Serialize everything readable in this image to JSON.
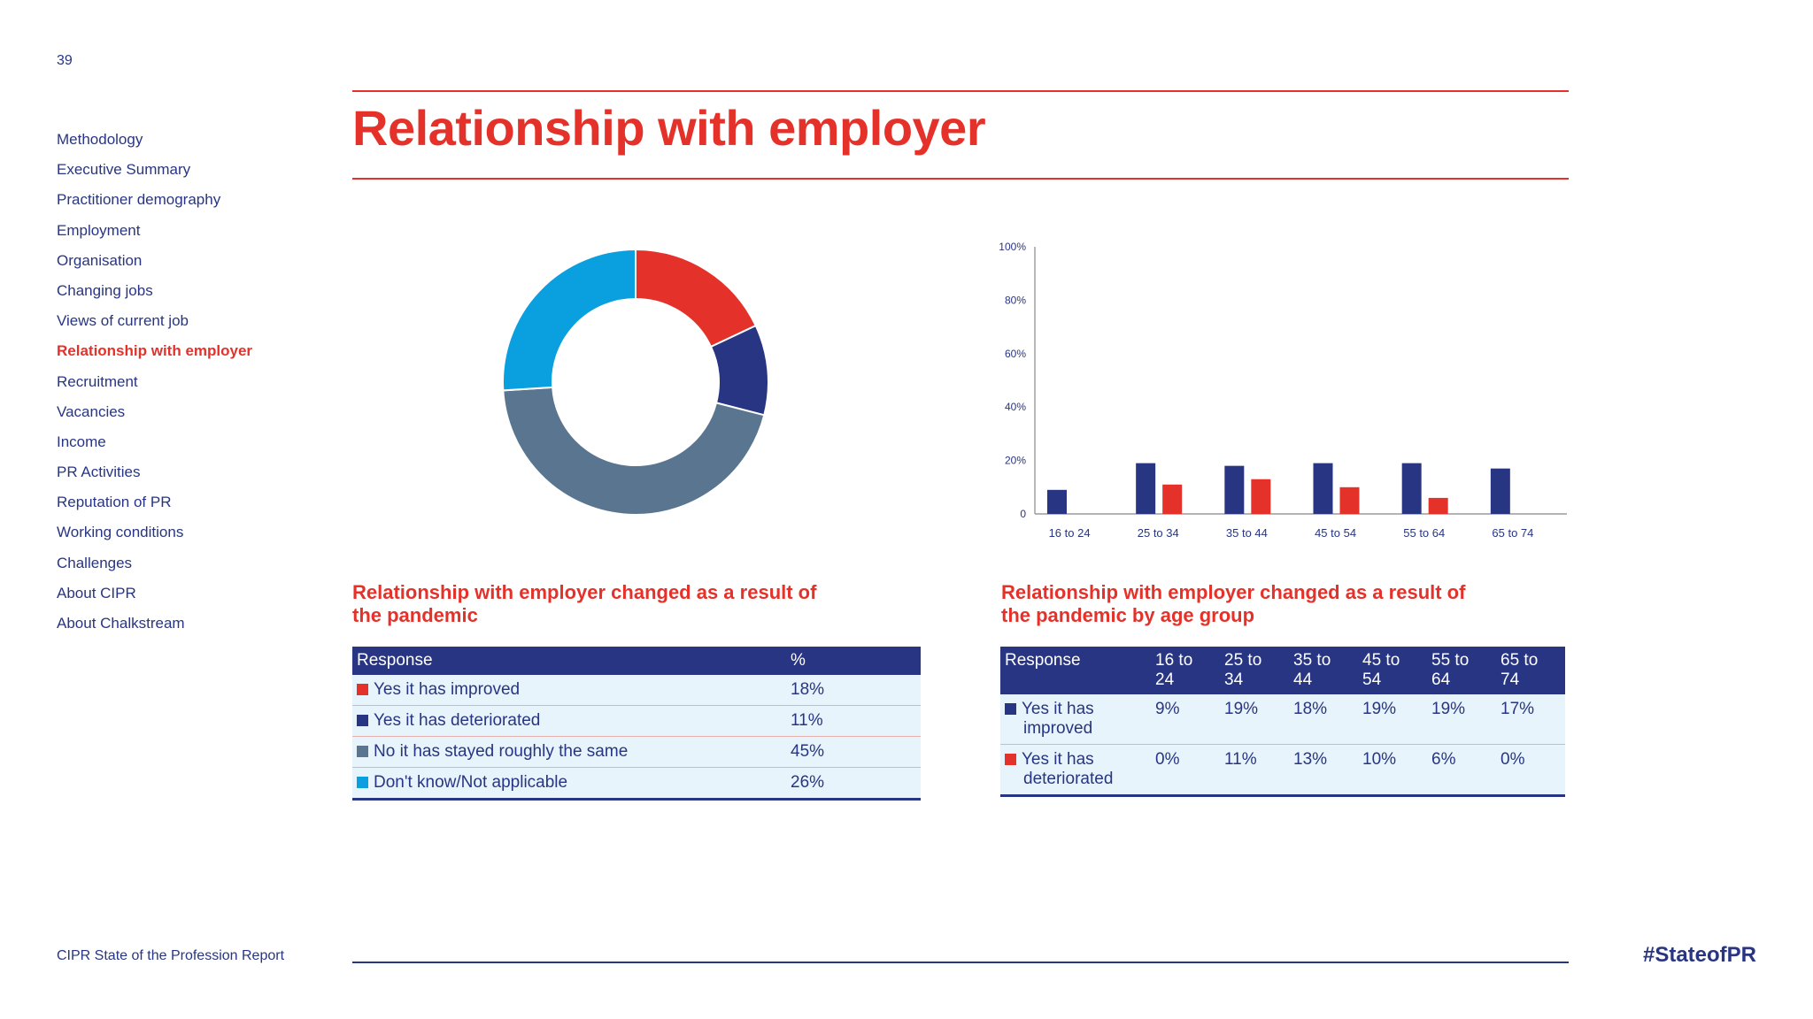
{
  "page_number": "39",
  "sidebar": {
    "items": [
      {
        "label": "Methodology"
      },
      {
        "label": "Executive Summary"
      },
      {
        "label": "Practitioner demography"
      },
      {
        "label": "Employment"
      },
      {
        "label": "Organisation"
      },
      {
        "label": "Changing jobs"
      },
      {
        "label": "Views of current job"
      },
      {
        "label": "Relationship with employer",
        "active": true
      },
      {
        "label": "Recruitment"
      },
      {
        "label": "Vacancies"
      },
      {
        "label": "Income"
      },
      {
        "label": "PR Activities"
      },
      {
        "label": "Reputation of PR"
      },
      {
        "label": "Working conditions"
      },
      {
        "label": "Challenges"
      },
      {
        "label": "About CIPR"
      },
      {
        "label": "About Chalkstream"
      }
    ]
  },
  "title": "Relationship with employer",
  "colors": {
    "red": "#e4322b",
    "navy": "#283583",
    "slate": "#5a7590",
    "cyan": "#0aa0e0"
  },
  "chart_data": [
    {
      "type": "pie",
      "title": "Relationship with employer changed as a result of the pandemic",
      "header": [
        "Response",
        "%"
      ],
      "slices": [
        {
          "label": "Yes it has improved",
          "value": 18,
          "display": "18%",
          "color": "#e4322b"
        },
        {
          "label": "Yes it has deteriorated",
          "value": 11,
          "display": "11%",
          "color": "#283583"
        },
        {
          "label": "No it has stayed roughly the same",
          "value": 45,
          "display": "45%",
          "color": "#5a7590"
        },
        {
          "label": "Don't know/Not applicable",
          "value": 26,
          "display": "26%",
          "color": "#0aa0e0"
        }
      ]
    },
    {
      "type": "bar",
      "title": "Relationship with employer changed as a result of the pandemic by age group",
      "categories": [
        "16 to 24",
        "25 to 34",
        "35 to 44",
        "45 to 54",
        "55 to 64",
        "65 to 74"
      ],
      "header_categories": [
        "16 to 24",
        "25 to 34",
        "35 to 44",
        "45 to 54",
        "55 to 64",
        "65 to 74"
      ],
      "header_label": "Response",
      "yticks": [
        "0",
        "20%",
        "40%",
        "60%",
        "80%",
        "100%"
      ],
      "ylim": [
        0,
        100
      ],
      "series": [
        {
          "name": "Yes it has improved",
          "color": "#283583",
          "values": [
            9,
            19,
            18,
            19,
            19,
            17
          ],
          "display": [
            "9%",
            "19%",
            "18%",
            "19%",
            "19%",
            "17%"
          ]
        },
        {
          "name": "Yes it has deteriorated",
          "color": "#e4322b",
          "values": [
            0,
            11,
            13,
            10,
            6,
            0
          ],
          "display": [
            "0%",
            "11%",
            "13%",
            "10%",
            "6%",
            "0%"
          ]
        }
      ]
    }
  ],
  "footer": {
    "report": "CIPR State of the Profession Report",
    "hashtag": "#StateofPR"
  }
}
